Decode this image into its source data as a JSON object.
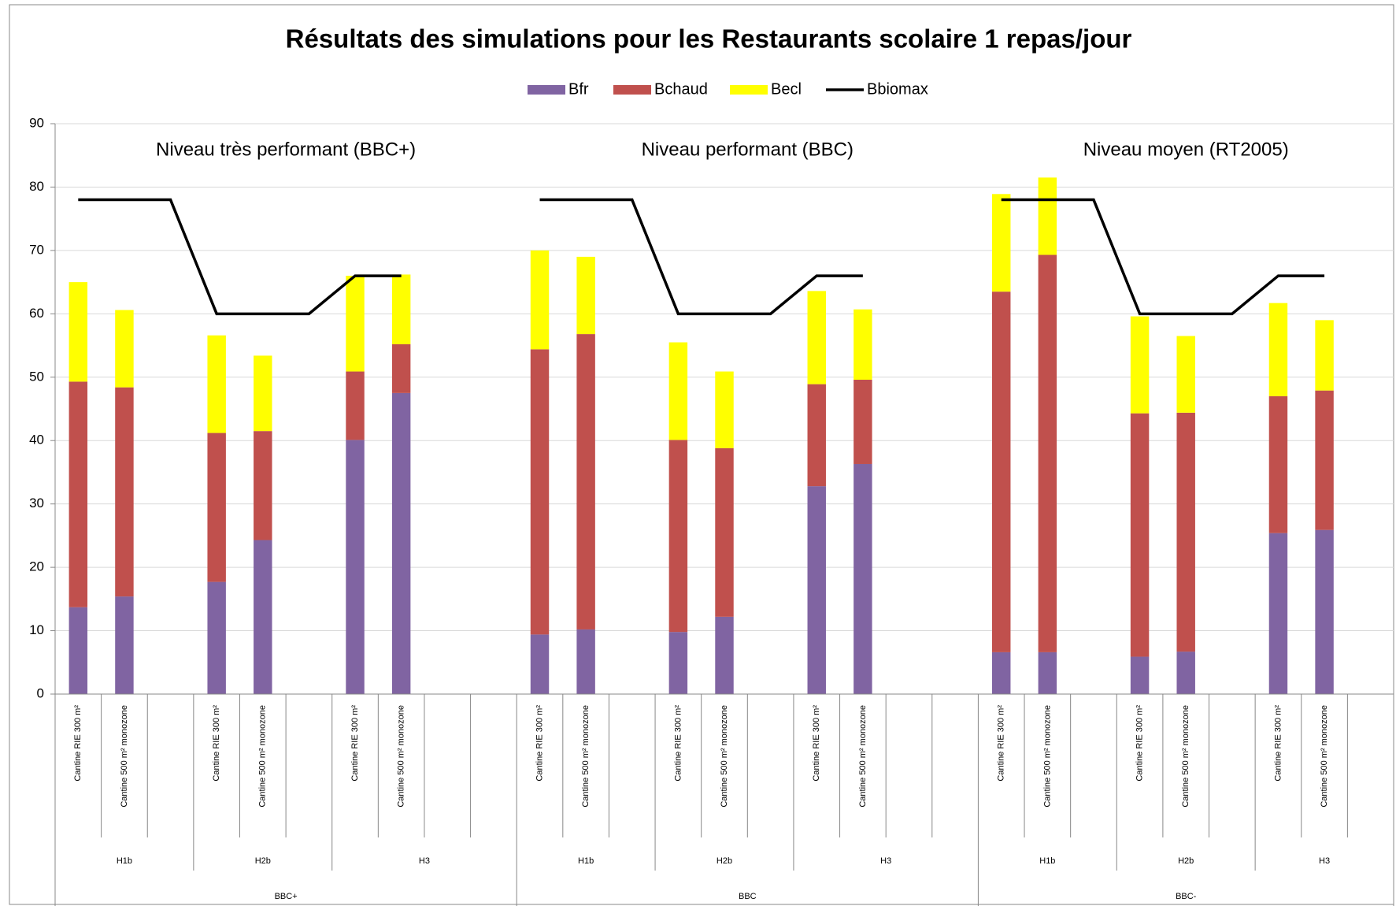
{
  "chart_data": {
    "type": "bar",
    "stacked": true,
    "title": "Résultats des simulations pour les Restaurants scolaire 1 repas/jour",
    "annotations": [
      "Niveau très performant (BBC+)",
      "Niveau performant (BBC)",
      "Niveau moyen (RT2005)"
    ],
    "groups": [
      {
        "name": "BBC+",
        "zones": [
          {
            "name": "H1b",
            "categories": [
              "Cantine RIE 300 m²",
              "Cantine 500 m² monozone",
              null
            ]
          },
          {
            "name": "H2b",
            "categories": [
              "Cantine RIE 300 m²",
              "Cantine 500 m² monozone",
              null
            ]
          },
          {
            "name": "H3",
            "categories": [
              "Cantine RIE 300 m²",
              "Cantine 500 m² monozone",
              null,
              null
            ]
          }
        ]
      },
      {
        "name": "BBC",
        "zones": [
          {
            "name": "H1b",
            "categories": [
              "Cantine RIE 300 m²",
              "Cantine 500 m² monozone",
              null
            ]
          },
          {
            "name": "H2b",
            "categories": [
              "Cantine RIE 300 m²",
              "Cantine 500 m² monozone",
              null
            ]
          },
          {
            "name": "H3",
            "categories": [
              "Cantine RIE 300 m²",
              "Cantine 500 m² monozone",
              null,
              null
            ]
          }
        ]
      },
      {
        "name": "BBC-",
        "zones": [
          {
            "name": "H1b",
            "categories": [
              "Cantine RIE 300 m²",
              "Cantine 500 m² monozone",
              null
            ]
          },
          {
            "name": "H2b",
            "categories": [
              "Cantine RIE 300 m²",
              "Cantine 500 m² monozone",
              null
            ]
          },
          {
            "name": "H3",
            "categories": [
              "Cantine RIE 300 m²",
              "Cantine 500 m² monozone",
              null
            ]
          }
        ]
      }
    ],
    "series": [
      {
        "name": "Bfr",
        "type": "bar",
        "color": "#8064a2",
        "values": [
          13.7,
          15.4,
          null,
          17.7,
          24.3,
          null,
          40.1,
          47.5,
          null,
          null,
          9.4,
          10.2,
          null,
          9.8,
          12.2,
          null,
          32.8,
          36.3,
          null,
          null,
          6.6,
          6.6,
          null,
          5.9,
          6.7,
          null,
          25.4,
          25.9,
          null
        ]
      },
      {
        "name": "Bchaud",
        "type": "bar",
        "color": "#c0504d",
        "values": [
          35.6,
          33,
          null,
          23.5,
          17.2,
          null,
          10.8,
          7.7,
          null,
          null,
          45,
          46.6,
          null,
          30.3,
          26.6,
          null,
          16.1,
          13.3,
          null,
          null,
          56.9,
          62.7,
          null,
          38.4,
          37.7,
          null,
          21.6,
          22,
          null
        ]
      },
      {
        "name": "Becl",
        "type": "bar",
        "color": "#ffff00",
        "values": [
          15.7,
          12.2,
          null,
          15.4,
          11.9,
          null,
          15.1,
          11,
          null,
          null,
          15.6,
          12.2,
          null,
          15.4,
          12.1,
          null,
          14.7,
          11.1,
          null,
          null,
          15.4,
          12.2,
          null,
          15.3,
          12.1,
          null,
          14.7,
          11.1,
          null
        ]
      },
      {
        "name": "Bbiomax",
        "type": "line",
        "color": "#000000",
        "values": [
          78,
          78,
          78,
          60,
          60,
          60,
          66,
          66,
          null,
          null,
          78,
          78,
          78,
          60,
          60,
          60,
          66,
          66,
          null,
          null,
          78,
          78,
          78,
          60,
          60,
          60,
          66,
          66,
          null
        ]
      }
    ],
    "ylim": [
      0,
      90
    ],
    "yticks": [
      0,
      10,
      20,
      30,
      40,
      50,
      60,
      70,
      80,
      90
    ],
    "grid": true,
    "legend": "top"
  }
}
